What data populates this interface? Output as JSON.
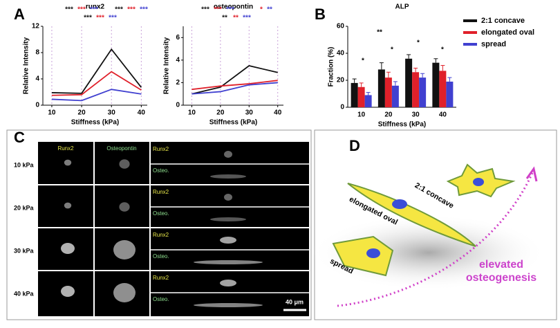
{
  "chart_data": [
    {
      "type": "line",
      "title": "runx2",
      "x_label": "Stiffness (kPa)",
      "y_label": "Relative Intensity",
      "x": [
        10,
        20,
        30,
        40
      ],
      "xlim": [
        7,
        42
      ],
      "xticks": [
        10,
        20,
        30,
        40
      ],
      "ylim": [
        0,
        12
      ],
      "yticks": [
        0,
        4,
        8,
        12
      ],
      "series": [
        {
          "color": "#111111",
          "values": [
            1.9,
            1.8,
            8.5,
            2.7
          ]
        },
        {
          "color": "#e0202a",
          "values": [
            1.5,
            1.6,
            5.1,
            2.3
          ]
        },
        {
          "color": "#4040d0",
          "values": [
            0.9,
            0.7,
            2.4,
            1.7
          ]
        }
      ],
      "annotations": [
        {
          "text": "***",
          "color": "#111111"
        },
        {
          "text": "***",
          "color": "#e0202a"
        },
        {
          "text": "***",
          "color": "#4040d0"
        },
        {
          "text": "***",
          "color": "#111111"
        },
        {
          "text": "***",
          "color": "#e0202a"
        },
        {
          "text": "***",
          "color": "#4040d0"
        },
        {
          "text": "***",
          "color": "#111111"
        },
        {
          "text": "***",
          "color": "#e0202a"
        },
        {
          "text": "***",
          "color": "#4040d0"
        }
      ]
    },
    {
      "type": "line",
      "title": "osteopontin",
      "x_label": "Stiffness (kPa)",
      "y_label": "Relative Intensity",
      "x": [
        10,
        20,
        30,
        40
      ],
      "xlim": [
        7,
        42
      ],
      "xticks": [
        10,
        20,
        30,
        40
      ],
      "ylim": [
        0,
        7
      ],
      "yticks": [
        0,
        2,
        4,
        6
      ],
      "series": [
        {
          "color": "#111111",
          "values": [
            1.0,
            1.6,
            3.5,
            2.9
          ]
        },
        {
          "color": "#e0202a",
          "values": [
            1.4,
            1.7,
            1.9,
            2.2
          ]
        },
        {
          "color": "#4040d0",
          "values": [
            1.0,
            1.2,
            1.8,
            2.0
          ]
        }
      ],
      "annotations": [
        {
          "text": "***",
          "color": "#111111"
        },
        {
          "text": "***",
          "color": "#e0202a"
        },
        {
          "text": "***",
          "color": "#4040d0"
        },
        {
          "text": "*",
          "color": "#e0202a"
        },
        {
          "text": "**",
          "color": "#4040d0"
        },
        {
          "text": "**",
          "color": "#111111"
        },
        {
          "text": "**",
          "color": "#e0202a"
        },
        {
          "text": "***",
          "color": "#4040d0"
        }
      ]
    },
    {
      "type": "bar",
      "title": "ALP",
      "x_label": "Stiffness (kPa)",
      "y_label": "Fraction (%)",
      "categories": [
        "10",
        "20",
        "30",
        "40"
      ],
      "ylim": [
        0,
        60
      ],
      "yticks": [
        0,
        20,
        40,
        60
      ],
      "series": [
        {
          "name": "2:1 concave",
          "color": "#111111",
          "values": [
            18,
            28,
            36,
            33
          ],
          "errors": [
            3,
            5,
            3,
            3
          ]
        },
        {
          "name": "elongated oval",
          "color": "#e0202a",
          "values": [
            15,
            22,
            26,
            27
          ],
          "errors": [
            3,
            4,
            3,
            4
          ]
        },
        {
          "name": "spread",
          "color": "#4040d0",
          "values": [
            9,
            16,
            22,
            19
          ],
          "errors": [
            2,
            3,
            3,
            3
          ]
        }
      ],
      "annotations": [
        {
          "text": "*"
        },
        {
          "text": "*"
        },
        {
          "text": "*"
        },
        {
          "text": "*"
        },
        {
          "text": "**"
        }
      ]
    }
  ],
  "panel_labels": [
    "A",
    "B",
    "C",
    "D"
  ],
  "micrographs": {
    "column_headers": [
      "Runx2",
      "Osteopontin"
    ],
    "rows": [
      "10 kPa",
      "20 kPa",
      "30 kPa",
      "40 kPa"
    ],
    "strip_labels": [
      "Runx2",
      "Osteo.",
      "Runx2",
      "Osteo.",
      "Runx2",
      "Osteo.",
      "Runx2",
      "Osteo."
    ],
    "scale_bar": "40 μm"
  },
  "illustration": {
    "labels": [
      "2:1 concave",
      "elongated oval",
      "spread"
    ],
    "caption": [
      "elevated",
      "osteogenesis"
    ]
  }
}
